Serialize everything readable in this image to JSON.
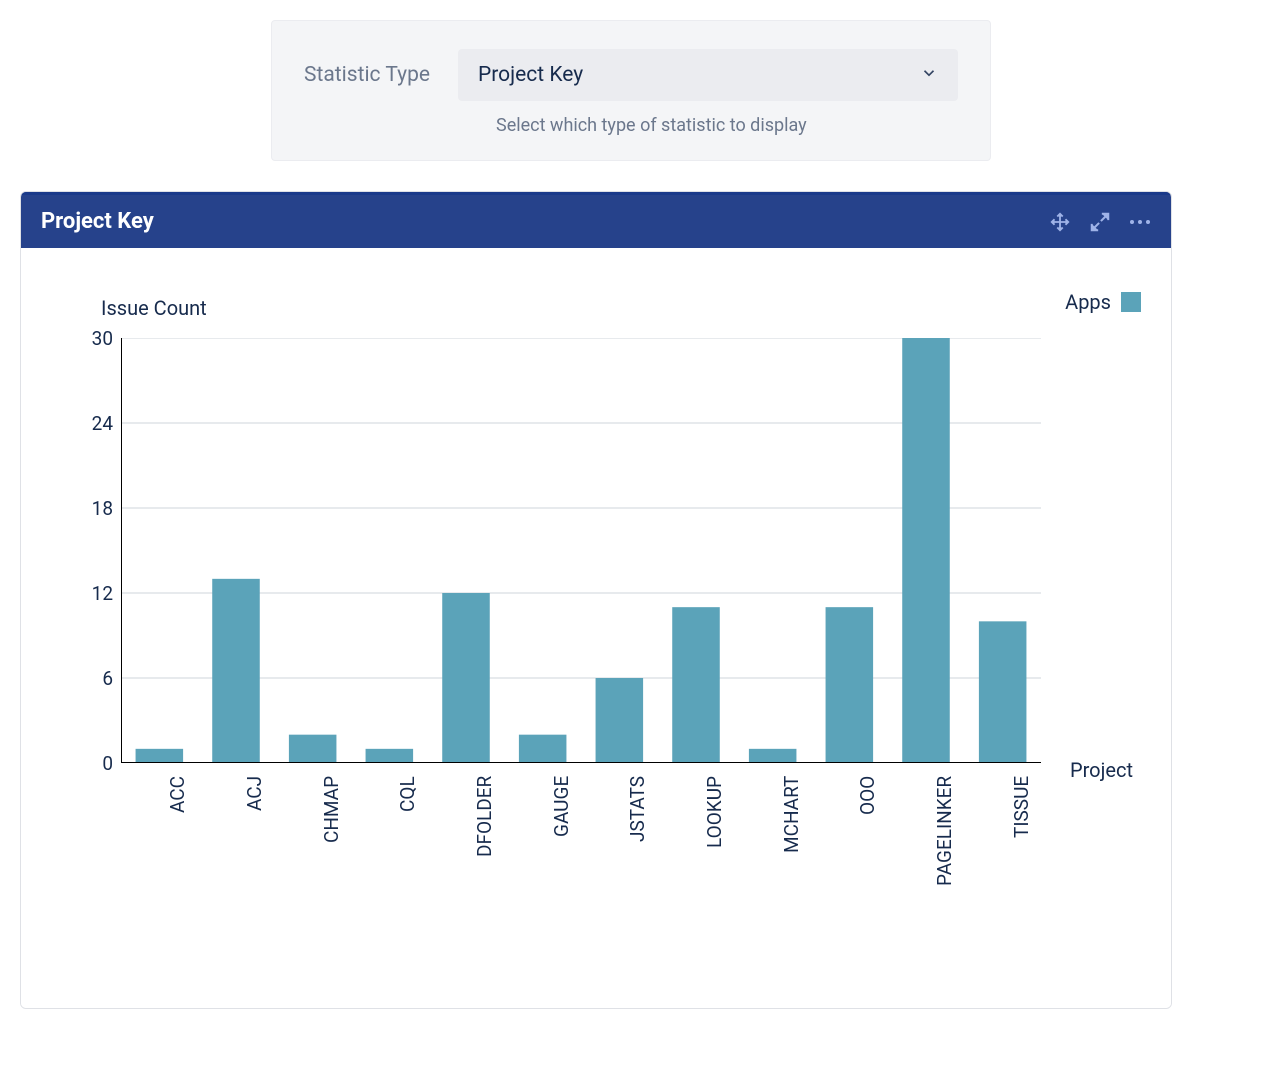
{
  "config": {
    "label": "Statistic Type",
    "selected": "Project Key",
    "help": "Select which type of statistic to display"
  },
  "widget": {
    "title": "Project Key"
  },
  "chart": {
    "type": "bar",
    "y_title": "Issue Count",
    "x_title": "Project",
    "legend_label": "Apps",
    "y_max": 30,
    "y_tick_step": 6,
    "y_ticks": [
      0,
      6,
      12,
      18,
      24,
      30
    ],
    "bar_color": "#5ba3b9",
    "grid_color": "#cfd4db",
    "axis_color": "#000000",
    "background_color": "#ffffff",
    "label_fontsize": 20,
    "tick_fontsize": 19,
    "categories": [
      "ACC",
      "ACJ",
      "CHMAP",
      "CQL",
      "DFOLDER",
      "GAUGE",
      "JSTATS",
      "LOOKUP",
      "MCHART",
      "OOO",
      "PAGELINKER",
      "TISSUE"
    ],
    "values": [
      1,
      13,
      2,
      1,
      12,
      2,
      6,
      11,
      1,
      11,
      30,
      10
    ]
  }
}
